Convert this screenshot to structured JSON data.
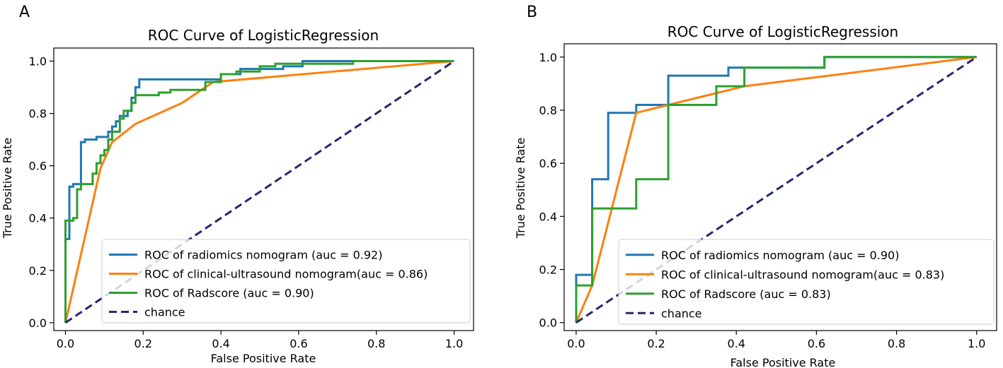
{
  "colors": {
    "radiomics": "#1f77b4",
    "clinical": "#ff7f0e",
    "radscore": "#2ca02c",
    "chance": "#262673"
  },
  "chart_data": [
    {
      "panel": "A",
      "type": "line",
      "title": "ROC Curve of LogisticRegression",
      "xlabel": "False Positive Rate",
      "ylabel": "True Positive Rate",
      "xlim": [
        -0.03,
        1.05
      ],
      "ylim": [
        -0.03,
        1.05
      ],
      "xticks": [
        0.0,
        0.2,
        0.4,
        0.6,
        0.8,
        1.0
      ],
      "xtick_labels": [
        "0.0",
        "0.2",
        "0.4",
        "0.6",
        "0.8",
        "1.0"
      ],
      "yticks": [
        0.0,
        0.2,
        0.4,
        0.6,
        0.8,
        1.0
      ],
      "ytick_labels": [
        "0.0",
        "0.2",
        "0.4",
        "0.6",
        "0.8",
        "1.0"
      ],
      "legend_position": "lower-right",
      "series": [
        {
          "name": "ROC of radiomics nomogram (auc = 0.92)",
          "color_key": "radiomics",
          "style": "step",
          "points": [
            [
              0,
              0
            ],
            [
              0,
              0.32
            ],
            [
              0.01,
              0.32
            ],
            [
              0.01,
              0.52
            ],
            [
              0.02,
              0.52
            ],
            [
              0.02,
              0.53
            ],
            [
              0.04,
              0.53
            ],
            [
              0.04,
              0.69
            ],
            [
              0.05,
              0.69
            ],
            [
              0.05,
              0.7
            ],
            [
              0.08,
              0.7
            ],
            [
              0.08,
              0.71
            ],
            [
              0.11,
              0.71
            ],
            [
              0.11,
              0.73
            ],
            [
              0.12,
              0.73
            ],
            [
              0.12,
              0.75
            ],
            [
              0.13,
              0.75
            ],
            [
              0.13,
              0.77
            ],
            [
              0.14,
              0.77
            ],
            [
              0.14,
              0.79
            ],
            [
              0.16,
              0.79
            ],
            [
              0.16,
              0.81
            ],
            [
              0.17,
              0.81
            ],
            [
              0.17,
              0.86
            ],
            [
              0.18,
              0.86
            ],
            [
              0.18,
              0.9
            ],
            [
              0.19,
              0.9
            ],
            [
              0.19,
              0.93
            ],
            [
              0.4,
              0.93
            ],
            [
              0.4,
              0.95
            ],
            [
              0.45,
              0.95
            ],
            [
              0.45,
              0.97
            ],
            [
              0.56,
              0.97
            ],
            [
              0.56,
              0.98
            ],
            [
              0.61,
              0.98
            ],
            [
              0.61,
              1.0
            ],
            [
              1.0,
              1.0
            ]
          ]
        },
        {
          "name": "ROC of clinical-ultrasound nomogram(auc = 0.86)",
          "color_key": "clinical",
          "style": "line",
          "points": [
            [
              0,
              0
            ],
            [
              0.09,
              0.59
            ],
            [
              0.12,
              0.69
            ],
            [
              0.18,
              0.76
            ],
            [
              0.3,
              0.84
            ],
            [
              0.38,
              0.92
            ],
            [
              1.0,
              1.0
            ]
          ]
        },
        {
          "name": "ROC of Radscore (auc = 0.90)",
          "color_key": "radscore",
          "style": "step",
          "points": [
            [
              0,
              0
            ],
            [
              0,
              0.39
            ],
            [
              0.02,
              0.39
            ],
            [
              0.02,
              0.4
            ],
            [
              0.03,
              0.4
            ],
            [
              0.03,
              0.51
            ],
            [
              0.04,
              0.51
            ],
            [
              0.04,
              0.53
            ],
            [
              0.07,
              0.53
            ],
            [
              0.07,
              0.57
            ],
            [
              0.08,
              0.57
            ],
            [
              0.08,
              0.61
            ],
            [
              0.09,
              0.61
            ],
            [
              0.09,
              0.64
            ],
            [
              0.1,
              0.64
            ],
            [
              0.1,
              0.66
            ],
            [
              0.11,
              0.66
            ],
            [
              0.11,
              0.7
            ],
            [
              0.12,
              0.7
            ],
            [
              0.12,
              0.73
            ],
            [
              0.14,
              0.73
            ],
            [
              0.14,
              0.78
            ],
            [
              0.15,
              0.78
            ],
            [
              0.15,
              0.81
            ],
            [
              0.17,
              0.81
            ],
            [
              0.17,
              0.84
            ],
            [
              0.18,
              0.84
            ],
            [
              0.18,
              0.87
            ],
            [
              0.21,
              0.87
            ],
            [
              0.21,
              0.87
            ],
            [
              0.24,
              0.87
            ],
            [
              0.24,
              0.88
            ],
            [
              0.27,
              0.88
            ],
            [
              0.27,
              0.89
            ],
            [
              0.36,
              0.89
            ],
            [
              0.36,
              0.92
            ],
            [
              0.4,
              0.92
            ],
            [
              0.4,
              0.95
            ],
            [
              0.44,
              0.95
            ],
            [
              0.44,
              0.96
            ],
            [
              0.5,
              0.96
            ],
            [
              0.5,
              0.98
            ],
            [
              0.54,
              0.98
            ],
            [
              0.54,
              0.99
            ],
            [
              0.74,
              0.99
            ],
            [
              0.74,
              1.0
            ],
            [
              1.0,
              1.0
            ]
          ]
        },
        {
          "name": "chance",
          "color_key": "chance",
          "style": "dashed",
          "points": [
            [
              0,
              0
            ],
            [
              1,
              1
            ]
          ]
        }
      ]
    },
    {
      "panel": "B",
      "type": "line",
      "title": "ROC Curve of LogisticRegression",
      "xlabel": "False Positive Rate",
      "ylabel": "True Positive Rate",
      "xlim": [
        -0.03,
        1.05
      ],
      "ylim": [
        -0.03,
        1.05
      ],
      "xticks": [
        0.0,
        0.2,
        0.4,
        0.6,
        0.8,
        1.0
      ],
      "xtick_labels": [
        "0.0",
        "0.2",
        "0.4",
        "0.6",
        "0.8",
        "1.0"
      ],
      "yticks": [
        0.0,
        0.2,
        0.4,
        0.6,
        0.8,
        1.0
      ],
      "ytick_labels": [
        "0.0",
        "0.2",
        "0.4",
        "0.6",
        "0.8",
        "1.0"
      ],
      "legend_position": "lower-right",
      "series": [
        {
          "name": "ROC of radiomics nomogram (auc = 0.90)",
          "color_key": "radiomics",
          "style": "step",
          "points": [
            [
              0,
              0
            ],
            [
              0,
              0.18
            ],
            [
              0.04,
              0.18
            ],
            [
              0.04,
              0.54
            ],
            [
              0.08,
              0.54
            ],
            [
              0.08,
              0.79
            ],
            [
              0.15,
              0.79
            ],
            [
              0.15,
              0.82
            ],
            [
              0.23,
              0.82
            ],
            [
              0.23,
              0.93
            ],
            [
              0.38,
              0.93
            ],
            [
              0.38,
              0.96
            ],
            [
              0.42,
              0.96
            ],
            [
              0.42,
              0.96
            ],
            [
              0.62,
              0.96
            ],
            [
              0.62,
              1.0
            ],
            [
              1.0,
              1.0
            ]
          ]
        },
        {
          "name": "ROC of clinical-ultrasound nomogram(auc = 0.83)",
          "color_key": "clinical",
          "style": "line",
          "points": [
            [
              0,
              0
            ],
            [
              0.04,
              0.14
            ],
            [
              0.15,
              0.79
            ],
            [
              0.23,
              0.82
            ],
            [
              0.42,
              0.89
            ],
            [
              1.0,
              1.0
            ]
          ]
        },
        {
          "name": "ROC of Radscore (auc = 0.83)",
          "color_key": "radscore",
          "style": "step",
          "points": [
            [
              0,
              0
            ],
            [
              0,
              0.14
            ],
            [
              0.04,
              0.14
            ],
            [
              0.04,
              0.43
            ],
            [
              0.15,
              0.43
            ],
            [
              0.15,
              0.54
            ],
            [
              0.23,
              0.54
            ],
            [
              0.23,
              0.82
            ],
            [
              0.35,
              0.82
            ],
            [
              0.35,
              0.89
            ],
            [
              0.42,
              0.89
            ],
            [
              0.42,
              0.96
            ],
            [
              0.62,
              0.96
            ],
            [
              0.62,
              1.0
            ],
            [
              1.0,
              1.0
            ]
          ]
        },
        {
          "name": "chance",
          "color_key": "chance",
          "style": "dashed",
          "points": [
            [
              0,
              0
            ],
            [
              1,
              1
            ]
          ]
        }
      ]
    }
  ]
}
